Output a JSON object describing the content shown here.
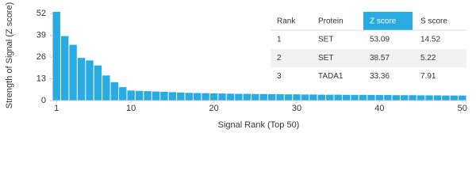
{
  "chart_data": {
    "type": "bar",
    "y_label": "Strength of Signal (Z score)",
    "x_label": "Signal Rank (Top 50)",
    "x": [
      1,
      2,
      3,
      4,
      5,
      6,
      7,
      8,
      9,
      10,
      11,
      12,
      13,
      14,
      15,
      16,
      17,
      18,
      19,
      20,
      21,
      22,
      23,
      24,
      25,
      26,
      27,
      28,
      29,
      30,
      31,
      32,
      33,
      34,
      35,
      36,
      37,
      38,
      39,
      40,
      41,
      42,
      43,
      44,
      45,
      46,
      47,
      48,
      49,
      50
    ],
    "values": [
      53.09,
      38.57,
      33.36,
      25.5,
      24,
      21,
      15,
      11,
      8,
      6,
      5.8,
      5.6,
      5.4,
      5.2,
      5,
      4.8,
      4.6,
      4.5,
      4.4,
      4.3,
      4.2,
      4.1,
      4,
      4,
      3.9,
      3.9,
      3.8,
      3.8,
      3.7,
      3.7,
      3.6,
      3.6,
      3.5,
      3.5,
      3.5,
      3.4,
      3.4,
      3.4,
      3.3,
      3.3,
      3.3,
      3.2,
      3.2,
      3.2,
      3.1,
      3.1,
      3.1,
      3,
      3,
      3
    ],
    "color": "#29abe2",
    "xlim": [
      0.5,
      50.5
    ],
    "xticks": [
      1,
      10,
      20,
      30,
      40,
      50
    ],
    "ylim": [
      0,
      54
    ],
    "yticks": [
      0,
      13,
      26,
      39,
      52
    ],
    "grid": false,
    "table": {
      "columns": [
        "Rank",
        "Protein",
        "Z score",
        "S score"
      ],
      "highlight_column": 2,
      "header_color": "#29abe2",
      "rows": [
        [
          1,
          "SET",
          53.09,
          14.52
        ],
        [
          2,
          "SET",
          38.57,
          5.22
        ],
        [
          3,
          "TADA1",
          33.36,
          7.91
        ]
      ]
    }
  }
}
